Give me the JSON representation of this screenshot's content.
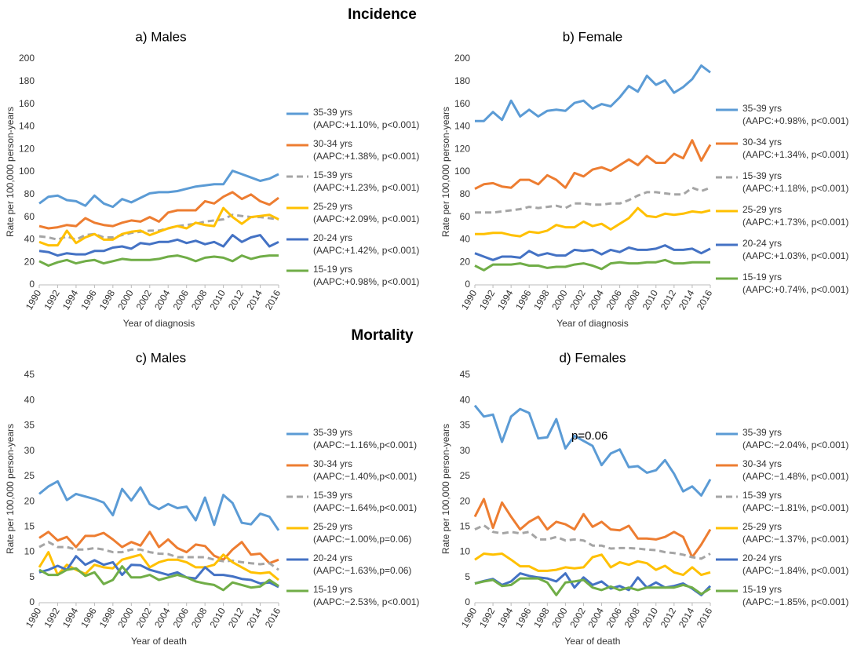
{
  "sections": [
    "Incidence",
    "Mortality"
  ],
  "chart_data": [
    {
      "type": "line",
      "title": "a) Males",
      "xlabel": "Year of diagnosis",
      "ylabel": "Rate per 100,000 person-years",
      "x": [
        1990,
        1991,
        1992,
        1993,
        1994,
        1995,
        1996,
        1997,
        1998,
        1999,
        2000,
        2001,
        2002,
        2003,
        2004,
        2005,
        2006,
        2007,
        2008,
        2009,
        2010,
        2011,
        2012,
        2013,
        2014,
        2015,
        2016
      ],
      "xlim": [
        1990,
        2016
      ],
      "xticks": [
        1990,
        1992,
        1994,
        1996,
        1998,
        2000,
        2002,
        2004,
        2006,
        2008,
        2010,
        2012,
        2014,
        2016
      ],
      "ylim": [
        0,
        200
      ],
      "yticks": [
        0,
        20,
        40,
        60,
        80,
        100,
        120,
        140,
        160,
        180,
        200
      ],
      "grid": false,
      "series": [
        {
          "name": "35-39 yrs",
          "detail": "(AAPC:+1.10%, p<0.001)",
          "color": "#5b9bd5",
          "values": [
            72,
            78,
            79,
            75,
            74,
            70,
            79,
            72,
            69,
            76,
            73,
            77,
            81,
            82,
            82,
            83,
            85,
            87,
            88,
            89,
            89,
            101,
            98,
            95,
            92,
            94,
            98
          ]
        },
        {
          "name": "30-34 yrs",
          "detail": "(AAPC:+1.38%, p<0.001)",
          "color": "#ed7d31",
          "values": [
            52,
            50,
            51,
            53,
            52,
            59,
            55,
            53,
            52,
            55,
            57,
            56,
            60,
            56,
            64,
            66,
            66,
            66,
            74,
            72,
            78,
            82,
            76,
            80,
            74,
            71,
            77
          ]
        },
        {
          "name": "15-39 yrs",
          "detail": "(AAPC:+1.23%, p<0.001)",
          "color": "#a5a5a5",
          "dash": true,
          "values": [
            43,
            42,
            40,
            43,
            40,
            44,
            45,
            42,
            42,
            44,
            46,
            47,
            48,
            48,
            50,
            52,
            53,
            54,
            56,
            57,
            58,
            62,
            61,
            60,
            60,
            59,
            58
          ]
        },
        {
          "name": "25-29 yrs",
          "detail": "(AAPC:+2.09%, p<0.001)",
          "color": "#ffc000",
          "values": [
            38,
            35,
            35,
            48,
            37,
            42,
            45,
            40,
            40,
            45,
            47,
            48,
            44,
            47,
            50,
            52,
            50,
            55,
            53,
            52,
            68,
            60,
            54,
            60,
            61,
            62,
            58
          ]
        },
        {
          "name": "20-24 yrs",
          "detail": "(AAPC:+1.42%, p<0.001)",
          "color": "#4472c4",
          "values": [
            30,
            29,
            26,
            28,
            27,
            27,
            30,
            30,
            33,
            34,
            32,
            37,
            36,
            38,
            38,
            40,
            37,
            39,
            36,
            38,
            34,
            44,
            38,
            42,
            44,
            34,
            38
          ]
        },
        {
          "name": "15-19 yrs",
          "detail": "(AAPC:+0.98%, p<0.001)",
          "color": "#70ad47",
          "values": [
            21,
            17,
            20,
            22,
            19,
            21,
            22,
            19,
            21,
            23,
            22,
            22,
            22,
            23,
            25,
            26,
            24,
            21,
            24,
            25,
            24,
            21,
            26,
            23,
            25,
            26,
            26
          ]
        }
      ]
    },
    {
      "type": "line",
      "title": "b) Female",
      "xlabel": "Year of diagnosis",
      "ylabel": "Rate per 100,000 person-years",
      "x": [
        1990,
        1991,
        1992,
        1993,
        1994,
        1995,
        1996,
        1997,
        1998,
        1999,
        2000,
        2001,
        2002,
        2003,
        2004,
        2005,
        2006,
        2007,
        2008,
        2009,
        2010,
        2011,
        2012,
        2013,
        2014,
        2015,
        2016
      ],
      "xlim": [
        1990,
        2016
      ],
      "xticks": [
        1990,
        1992,
        1994,
        1996,
        1998,
        2000,
        2002,
        2004,
        2006,
        2008,
        2010,
        2012,
        2014,
        2016
      ],
      "ylim": [
        0,
        200
      ],
      "yticks": [
        0,
        20,
        40,
        60,
        80,
        100,
        120,
        140,
        160,
        180,
        200
      ],
      "grid": false,
      "series": [
        {
          "name": "35-39 yrs",
          "detail": "(AAPC:+0.98%, p<0.001)",
          "color": "#5b9bd5",
          "values": [
            145,
            145,
            153,
            146,
            163,
            149,
            155,
            149,
            154,
            155,
            154,
            161,
            163,
            156,
            160,
            158,
            166,
            176,
            171,
            185,
            177,
            181,
            170,
            175,
            182,
            194,
            188
          ]
        },
        {
          "name": "30-34 yrs",
          "detail": "(AAPC:+1.34%, p<0.001)",
          "color": "#ed7d31",
          "values": [
            85,
            89,
            90,
            87,
            86,
            93,
            93,
            89,
            97,
            93,
            86,
            99,
            96,
            102,
            104,
            101,
            106,
            111,
            106,
            114,
            108,
            108,
            116,
            112,
            128,
            110,
            124
          ]
        },
        {
          "name": "15-39 yrs",
          "detail": "(AAPC:+1.18%, p<0.001)",
          "color": "#a5a5a5",
          "dash": true,
          "values": [
            64,
            64,
            64,
            65,
            66,
            67,
            69,
            68,
            69,
            70,
            68,
            72,
            72,
            71,
            71,
            72,
            72,
            75,
            79,
            82,
            82,
            81,
            80,
            80,
            86,
            83,
            86
          ]
        },
        {
          "name": "25-29 yrs",
          "detail": "(AAPC:+1.73%, p<0.001)",
          "color": "#ffc000",
          "values": [
            45,
            45,
            46,
            46,
            44,
            43,
            47,
            46,
            48,
            53,
            51,
            51,
            56,
            52,
            54,
            49,
            54,
            59,
            68,
            61,
            60,
            63,
            62,
            63,
            65,
            64,
            66
          ]
        },
        {
          "name": "20-24 yrs",
          "detail": "(AAPC:+1.03%, p<0.001)",
          "color": "#4472c4",
          "values": [
            28,
            25,
            22,
            25,
            25,
            24,
            30,
            26,
            28,
            26,
            26,
            31,
            30,
            31,
            27,
            31,
            29,
            33,
            31,
            31,
            32,
            35,
            31,
            31,
            32,
            28,
            32
          ]
        },
        {
          "name": "15-19 yrs",
          "detail": "(AAPC:+0.74%, p<0.001)",
          "color": "#70ad47",
          "values": [
            17,
            13,
            18,
            18,
            18,
            19,
            17,
            17,
            15,
            16,
            16,
            18,
            19,
            17,
            14,
            19,
            20,
            19,
            19,
            20,
            20,
            22,
            19,
            19,
            20,
            20,
            20
          ]
        }
      ]
    },
    {
      "type": "line",
      "title": "c) Males",
      "xlabel": "Year of death",
      "ylabel": "Rate per 100,000 person-years",
      "x": [
        1990,
        1991,
        1992,
        1993,
        1994,
        1995,
        1996,
        1997,
        1998,
        1999,
        2000,
        2001,
        2002,
        2003,
        2004,
        2005,
        2006,
        2007,
        2008,
        2009,
        2010,
        2011,
        2012,
        2013,
        2014,
        2015,
        2016
      ],
      "xlim": [
        1990,
        2016
      ],
      "xticks": [
        1990,
        1992,
        1994,
        1996,
        1998,
        2000,
        2002,
        2004,
        2006,
        2008,
        2010,
        2012,
        2014,
        2016
      ],
      "ylim": [
        0,
        45
      ],
      "yticks": [
        0,
        5,
        10,
        15,
        20,
        25,
        30,
        35,
        40,
        45
      ],
      "grid": false,
      "series": [
        {
          "name": "35-39 yrs",
          "detail": "(AAPC:−1.16%,p<0.001)",
          "color": "#5b9bd5",
          "values": [
            21.5,
            23,
            24,
            20.3,
            21.5,
            21,
            20.5,
            19.8,
            17.3,
            22.5,
            20.2,
            22.8,
            19.5,
            18.5,
            19.5,
            18.7,
            19,
            16.3,
            20.8,
            15.4,
            21.3,
            19.7,
            15.8,
            15.5,
            17.6,
            17,
            14.3
          ]
        },
        {
          "name": "30-34 yrs",
          "detail": "(AAPC:−1.40%,p<0.001)",
          "color": "#ed7d31",
          "values": [
            12.8,
            14,
            12.3,
            13,
            11,
            13.2,
            13.2,
            13.8,
            12.5,
            11,
            12,
            11.3,
            14,
            11,
            12.5,
            10.8,
            10,
            11.5,
            11.2,
            9.3,
            8.5,
            10.5,
            12,
            9.5,
            9.7,
            7.8,
            8.5
          ]
        },
        {
          "name": "15-39 yrs",
          "detail": "(AAPC:−1.64%,p<0.001)",
          "color": "#a5a5a5",
          "dash": true,
          "values": [
            11,
            12,
            11,
            11,
            10.5,
            10.5,
            10.8,
            10.5,
            10,
            10,
            10.5,
            10.5,
            10,
            9.7,
            9.6,
            9,
            9,
            9,
            9,
            8.5,
            8.2,
            8.3,
            8,
            7.8,
            7.6,
            7.8,
            6.5
          ]
        },
        {
          "name": "25-29 yrs",
          "detail": "(AAPC:−1.00%,p=0.06)",
          "color": "#ffc000",
          "values": [
            7,
            10,
            5.5,
            7.5,
            6.5,
            5.7,
            7.5,
            7,
            6.8,
            8.5,
            9,
            9.5,
            7,
            8,
            8.5,
            8.5,
            8,
            7,
            7,
            7.5,
            9.5,
            8,
            7,
            6,
            5.8,
            6,
            4.5
          ]
        },
        {
          "name": "20-24 yrs",
          "detail": "(AAPC:−1.63%,p=0.06)",
          "color": "#4472c4",
          "values": [
            6,
            6.5,
            7.3,
            6.5,
            9.2,
            7.5,
            8.4,
            7.5,
            8,
            5.5,
            7.5,
            7.4,
            6.5,
            6,
            5.5,
            6,
            5,
            4.8,
            7,
            5.5,
            5.5,
            5.2,
            4.7,
            4.5,
            3.8,
            4,
            3.1
          ]
        },
        {
          "name": "15-19 yrs",
          "detail": "(AAPC:−2.53%, p<0.001)",
          "color": "#70ad47",
          "values": [
            6.5,
            5.5,
            5.5,
            6.5,
            6.8,
            5.3,
            6,
            3.7,
            4.5,
            7.2,
            5,
            5,
            5.5,
            4.5,
            5,
            5.5,
            5,
            4.2,
            3.8,
            3.5,
            2.5,
            4,
            3.5,
            3,
            3.2,
            4.5,
            3.3
          ]
        }
      ]
    },
    {
      "type": "line",
      "title": "d) Females",
      "xlabel": "Year of death",
      "ylabel": "Rate per 100,000 person-years",
      "annotation": "p=0.06",
      "x": [
        1990,
        1991,
        1992,
        1993,
        1994,
        1995,
        1996,
        1997,
        1998,
        1999,
        2000,
        2001,
        2002,
        2003,
        2004,
        2005,
        2006,
        2007,
        2008,
        2009,
        2010,
        2011,
        2012,
        2013,
        2014,
        2015,
        2016
      ],
      "xlim": [
        1990,
        2016
      ],
      "xticks": [
        1990,
        1992,
        1994,
        1996,
        1998,
        2000,
        2002,
        2004,
        2006,
        2008,
        2010,
        2012,
        2014,
        2016
      ],
      "ylim": [
        0,
        45
      ],
      "yticks": [
        0,
        5,
        10,
        15,
        20,
        25,
        30,
        35,
        40,
        45
      ],
      "grid": false,
      "series": [
        {
          "name": "35-39 yrs",
          "detail": "(AAPC:−2.04%, p<0.001)",
          "color": "#5b9bd5",
          "values": [
            39,
            36.8,
            37.2,
            31.8,
            36.8,
            38.3,
            37.5,
            32.5,
            32.7,
            36.3,
            30.5,
            33,
            32,
            31,
            27.2,
            29.5,
            30.3,
            26.8,
            27,
            25.7,
            26.2,
            28.2,
            25.5,
            22,
            23,
            21.2,
            24.4
          ]
        },
        {
          "name": "30-34 yrs",
          "detail": "(AAPC:−1.48%, p<0.001)",
          "color": "#ed7d31",
          "values": [
            17,
            20.5,
            14.8,
            19.8,
            17,
            14.5,
            16,
            17,
            14.5,
            16,
            15.5,
            14.5,
            17.5,
            15,
            16,
            14.5,
            14.3,
            15.2,
            12.7,
            12.7,
            12.5,
            13,
            14,
            13,
            9,
            11.5,
            14.5
          ]
        },
        {
          "name": "15-39 yrs",
          "detail": "(AAPC:−1.81%, p<0.001)",
          "color": "#a5a5a5",
          "dash": true,
          "values": [
            14.5,
            15.3,
            14,
            13.7,
            14,
            13.7,
            14,
            12.5,
            12.5,
            13,
            12.3,
            12.5,
            12.3,
            11.3,
            11.3,
            10.7,
            10.8,
            10.8,
            10.7,
            10.5,
            10.4,
            10,
            9.8,
            9.5,
            9,
            8.7,
            9.7
          ]
        },
        {
          "name": "25-29 yrs",
          "detail": "(AAPC:−1.37%, p<0.001)",
          "color": "#ffc000",
          "values": [
            8.5,
            9.7,
            9.5,
            9.7,
            8.5,
            7.2,
            7.2,
            6.3,
            6.3,
            6.5,
            7,
            6.8,
            7,
            9,
            9.5,
            7,
            8,
            7.5,
            8.2,
            7.8,
            6.5,
            7.3,
            6,
            5.5,
            7,
            5.5,
            6
          ]
        },
        {
          "name": "20-24 yrs",
          "detail": "(AAPC:−1.84%, p<0.001)",
          "color": "#4472c4",
          "values": [
            3.8,
            4.3,
            4.7,
            3.5,
            4.2,
            5.8,
            5.3,
            5,
            4.8,
            4.2,
            5.8,
            3,
            5,
            3.5,
            4.2,
            2.8,
            3.3,
            2.5,
            5,
            3,
            4,
            3,
            3.3,
            3.8,
            2.8,
            1.5,
            3.3
          ]
        },
        {
          "name": "15-19 yrs",
          "detail": "(AAPC:−1.85%, p<0.001)",
          "color": "#70ad47",
          "values": [
            3.8,
            4.2,
            4.5,
            3.3,
            3.5,
            4.8,
            4.8,
            4.8,
            4,
            1.5,
            4,
            4.2,
            4.5,
            3,
            2.5,
            3.2,
            2.5,
            3,
            2.5,
            3,
            3,
            3,
            3,
            3.5,
            3,
            1.7,
            2.8
          ]
        }
      ]
    }
  ]
}
